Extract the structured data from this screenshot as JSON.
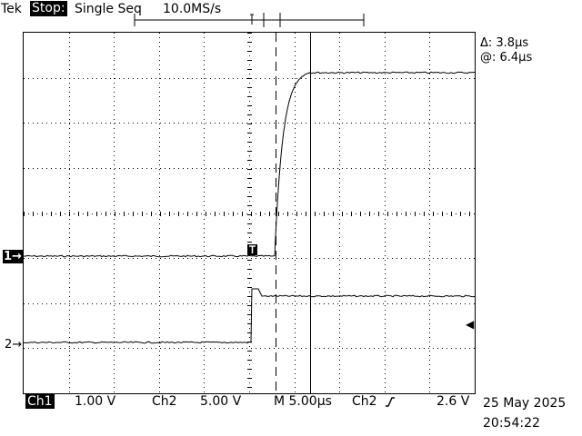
{
  "header": {
    "brand": "Tek",
    "status": "Stop:",
    "mode": "Single Seq",
    "sample_rate": "10.0MS/s"
  },
  "channels": {
    "ch1_marker": "1→",
    "ch2_marker": "2→",
    "trigger_level_marker": "◀"
  },
  "cursor_readout": {
    "delta": "Δ: 3.8µs",
    "at": "@: 6.4µs"
  },
  "footer": {
    "ch1_label": "Ch1",
    "ch1_scale": "1.00 V",
    "ch2_label": "Ch2",
    "ch2_scale": "5.00 V",
    "timebase": "M 5.00µs",
    "trigger_source": "Ch2",
    "trigger_slope_icon": "rising-edge-icon",
    "trigger_level": "2.6 V",
    "date": "25 May 2025",
    "time": "20:54:22"
  },
  "colors": {
    "background": "#ffffff",
    "trace": "#000000",
    "graticule": "#000000"
  }
}
